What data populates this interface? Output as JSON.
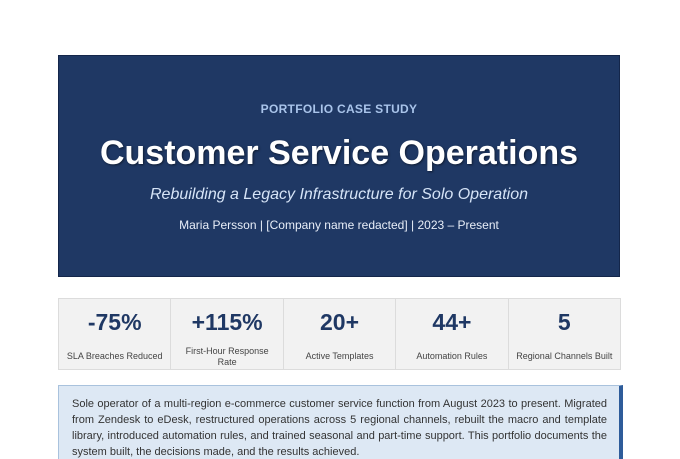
{
  "hero": {
    "eyebrow": "PORTFOLIO CASE STUDY",
    "title": "Customer Service Operations",
    "subtitle": "Rebuilding a Legacy Infrastructure for Solo Operation",
    "byline": "Maria Persson | [Company name redacted] | 2023 – Present"
  },
  "stats": [
    {
      "value": "-75%",
      "label": "SLA Breaches Reduced"
    },
    {
      "value": "+115%",
      "label": "First-Hour Response Rate"
    },
    {
      "value": "20+",
      "label": "Active Templates"
    },
    {
      "value": "44+",
      "label": "Automation Rules"
    },
    {
      "value": "5",
      "label": "Regional Channels Built"
    }
  ],
  "summary": {
    "text": "Sole operator of a multi-region e-commerce customer service function from August 2023 to present. Migrated from Zendesk to eDesk, restructured operations across 5 regional channels, rebuilt the macro and template library, introduced automation rules, and trained seasonal and part-time support. This portfolio documents the system built, the decisions made, and the results achieved."
  },
  "colors": {
    "hero_background": "#1f3864",
    "eyebrow": "#a9c4ea",
    "stat_value": "#1f3864",
    "summary_background": "#dde8f4",
    "summary_accent": "#2e5c9a"
  }
}
